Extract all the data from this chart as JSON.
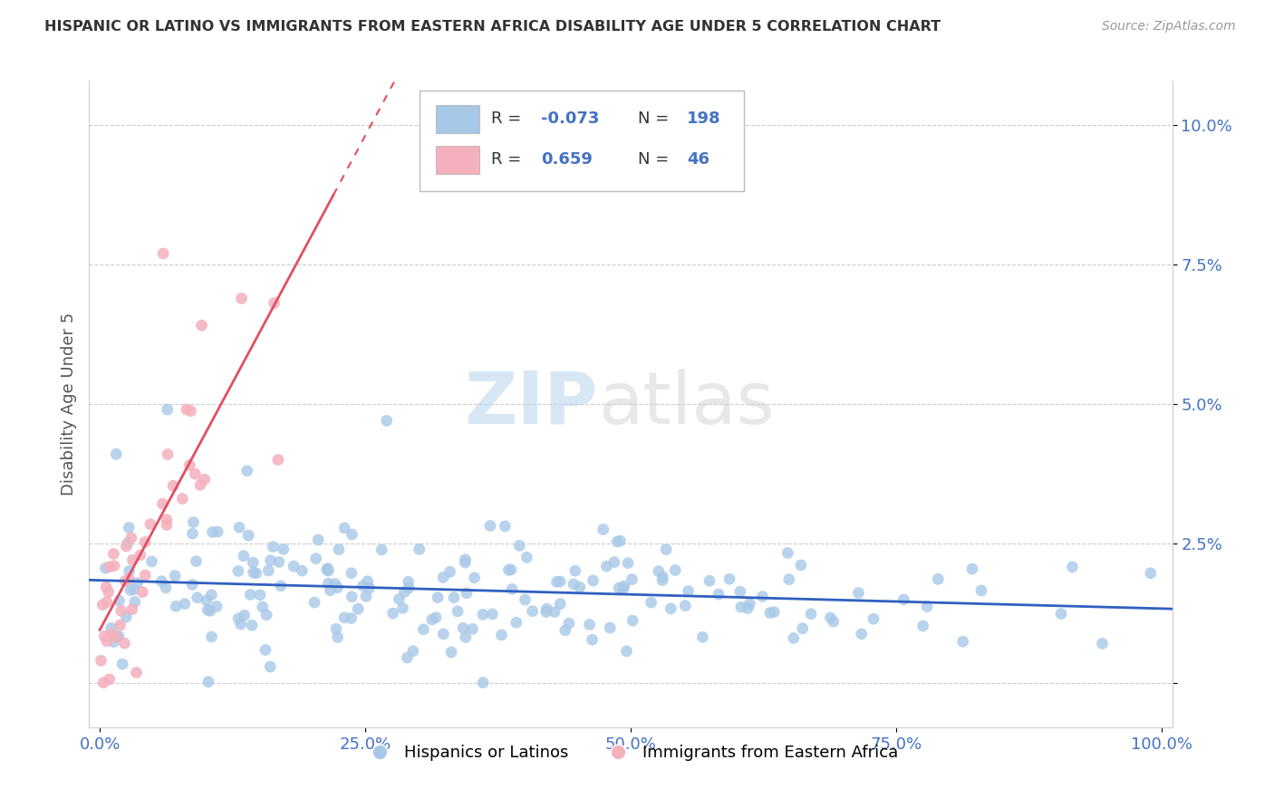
{
  "title": "HISPANIC OR LATINO VS IMMIGRANTS FROM EASTERN AFRICA DISABILITY AGE UNDER 5 CORRELATION CHART",
  "source": "Source: ZipAtlas.com",
  "ylabel": "Disability Age Under 5",
  "xlabel": "",
  "xlim": [
    -0.01,
    1.01
  ],
  "ylim": [
    -0.008,
    0.108
  ],
  "yticks": [
    0.0,
    0.025,
    0.05,
    0.075,
    0.1
  ],
  "ytick_labels": [
    "",
    "2.5%",
    "5.0%",
    "7.5%",
    "10.0%"
  ],
  "xticks": [
    0.0,
    0.25,
    0.5,
    0.75,
    1.0
  ],
  "xtick_labels": [
    "0.0%",
    "25.0%",
    "50.0%",
    "75.0%",
    "100.0%"
  ],
  "blue_R": -0.073,
  "blue_N": 198,
  "pink_R": 0.659,
  "pink_N": 46,
  "blue_color": "#a8c8e8",
  "pink_color": "#f4b0bc",
  "blue_line_color": "#3060c0",
  "pink_line_color": "#e05060",
  "background_color": "#ffffff",
  "seed": 42
}
